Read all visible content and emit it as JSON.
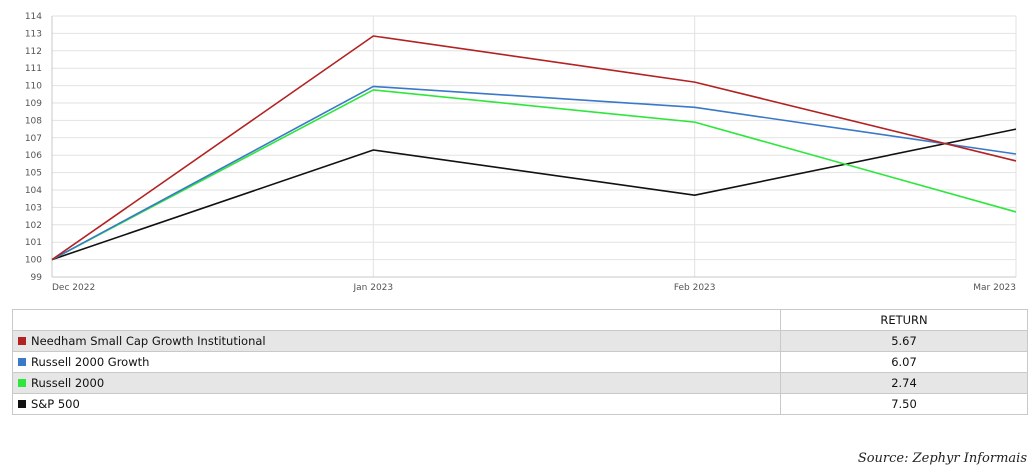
{
  "chart_data": {
    "type": "line",
    "x": [
      "Dec 2022",
      "Jan 2023",
      "Feb 2023",
      "Mar 2023"
    ],
    "ylim": [
      99,
      114
    ],
    "yticks": [
      99,
      100,
      101,
      102,
      103,
      104,
      105,
      106,
      107,
      108,
      109,
      110,
      111,
      112,
      113,
      114
    ],
    "grid": true,
    "series": [
      {
        "name": "Needham Small Cap Growth Institutional",
        "color": "#b22222",
        "values": [
          100,
          112.85,
          110.2,
          105.67
        ]
      },
      {
        "name": "Russell 2000 Growth",
        "color": "#3a78c8",
        "values": [
          100,
          109.95,
          108.75,
          106.07
        ]
      },
      {
        "name": "Russell 2000",
        "color": "#2ee63c",
        "values": [
          100,
          109.75,
          107.9,
          102.74
        ]
      },
      {
        "name": "S&P 500",
        "color": "#111111",
        "values": [
          100,
          106.3,
          103.7,
          107.5
        ]
      }
    ]
  },
  "table": {
    "header_return": "RETURN",
    "rows": [
      {
        "name": "Needham Small Cap Growth Institutional",
        "color": "#b22222",
        "return": "5.67"
      },
      {
        "name": "Russell 2000 Growth",
        "color": "#3a78c8",
        "return": "6.07"
      },
      {
        "name": "Russell 2000",
        "color": "#2ee63c",
        "return": "2.74"
      },
      {
        "name": "S&P 500",
        "color": "#111111",
        "return": "7.50"
      }
    ]
  },
  "source": "Source: Zephyr Informais"
}
